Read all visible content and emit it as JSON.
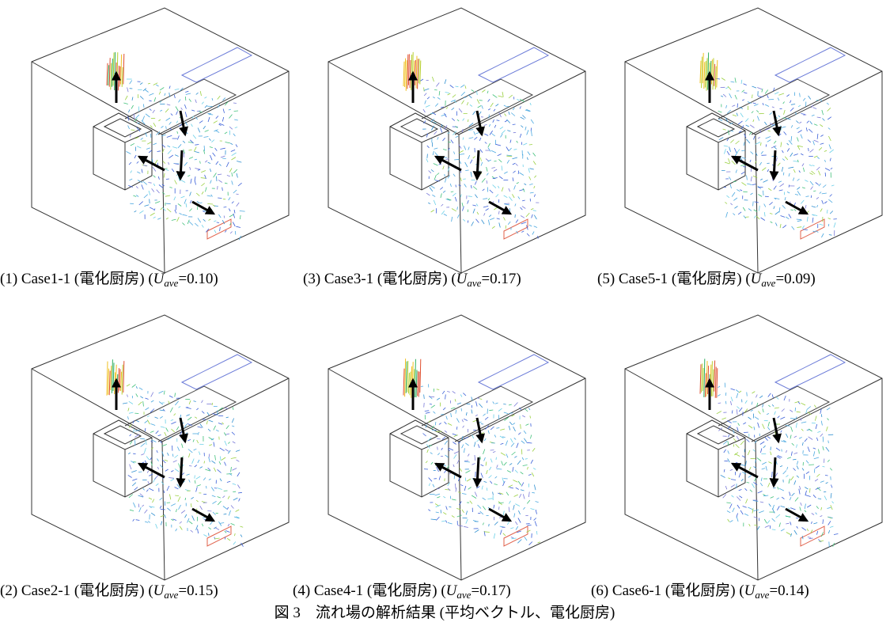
{
  "panels": [
    {
      "label": "(1) Case1-1 (電化厨房) (",
      "symbol": "U",
      "subscript": "ave",
      "value": "=0.10)"
    },
    {
      "label": "(3) Case3-1 (電化厨房) (",
      "symbol": "U",
      "subscript": "ave",
      "value": "=0.17)"
    },
    {
      "label": "(5) Case5-1 (電化厨房) (",
      "symbol": "U",
      "subscript": "ave",
      "value": "=0.09)"
    },
    {
      "label": "(2) Case2-1 (電化厨房) (",
      "symbol": "U",
      "subscript": "ave",
      "value": "=0.15)"
    },
    {
      "label": "(4) Case4-1 (電化厨房) (",
      "symbol": "U",
      "subscript": "ave",
      "value": "=0.17)"
    },
    {
      "label": "(6) Case6-1 (電化厨房) (",
      "symbol": "U",
      "subscript": "ave",
      "value": "=0.14)"
    }
  ],
  "figure_caption": "図 3　流れ場の解析結果 (平均ベクトル、電化厨房)"
}
